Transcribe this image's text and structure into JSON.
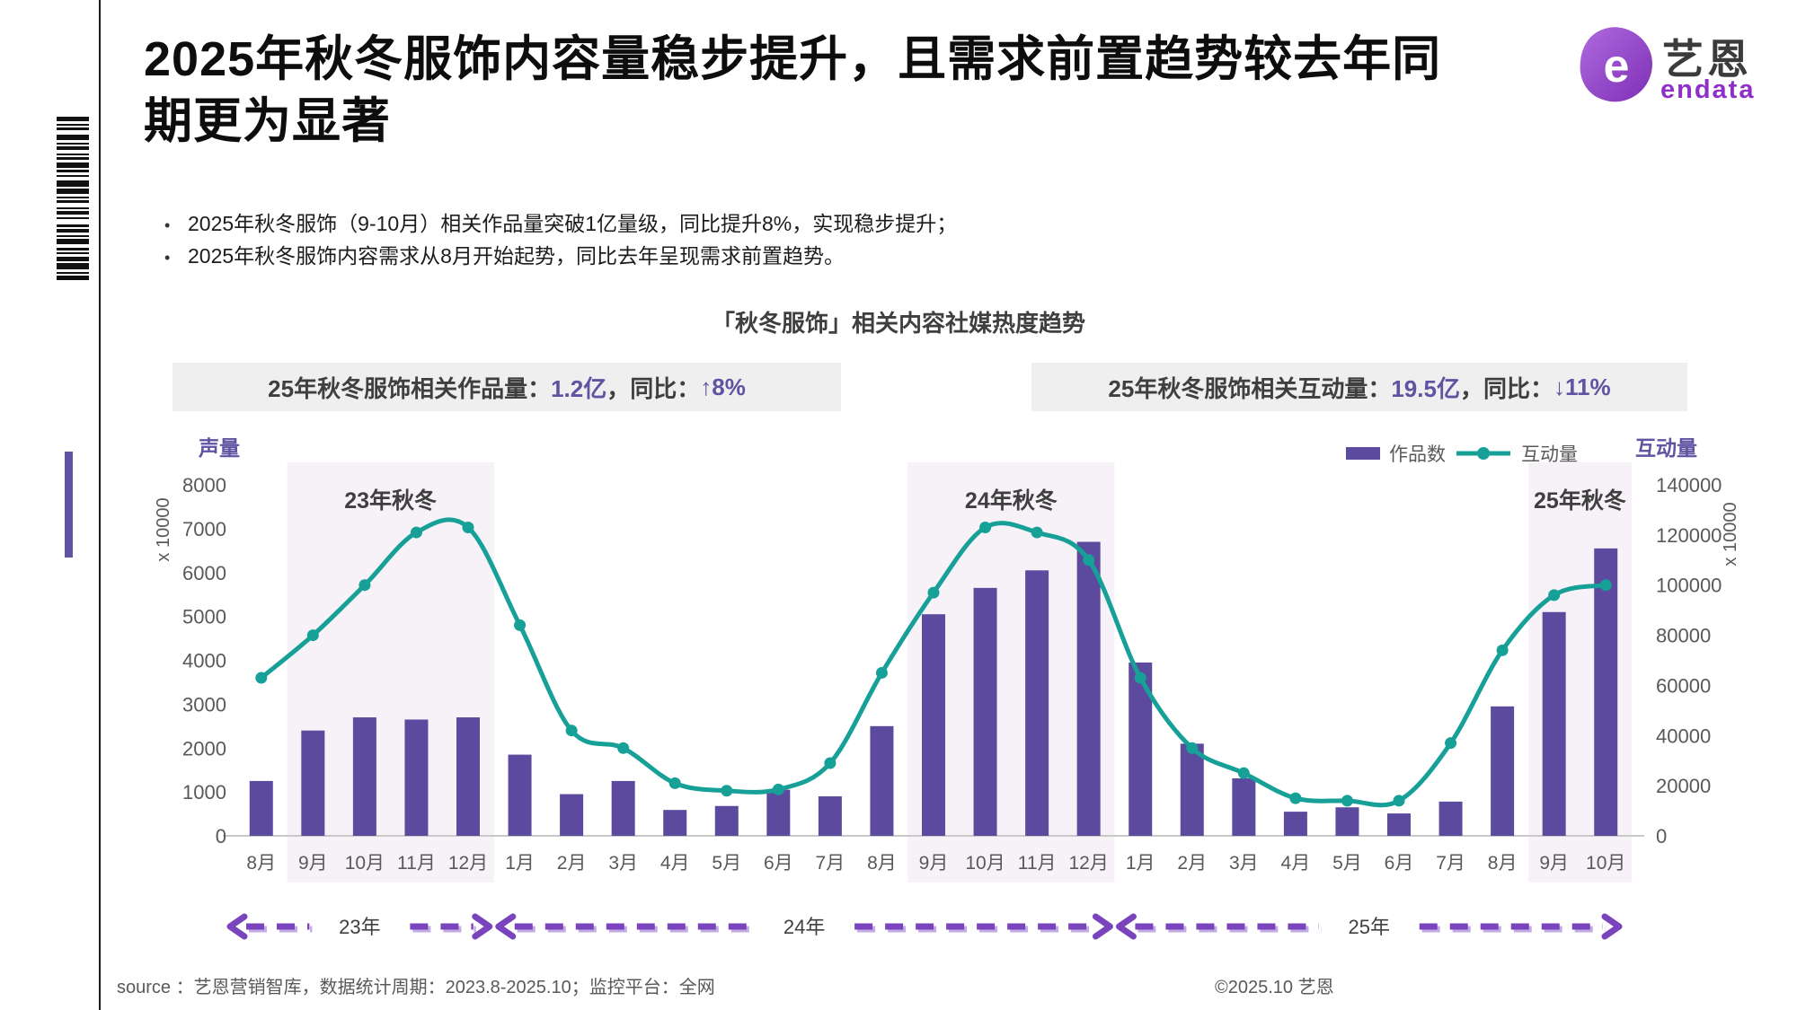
{
  "page": {
    "title_lines": [
      "2025年秋冬服饰内容量稳步提升，且需求前置趋势较去年同",
      "期更为显著"
    ],
    "bullets": [
      "2025年秋冬服饰（9-10月）相关作品量突破1亿量级，同比提升8%，实现稳步提升；",
      "2025年秋冬服饰内容需求从8月开始起势，同比去年呈现需求前置趋势。"
    ],
    "footer_source": "source ：艺恩营销智库，数据统计周期：2023.8-2025.10；监控平台：全网",
    "footer_copyright": "©2025.10  艺恩"
  },
  "logo": {
    "cn": "艺恩",
    "en": "endata",
    "mark": "e"
  },
  "stats": {
    "left": {
      "label": "25年秋冬服饰相关作品量：",
      "value": "1.2亿",
      "mid": "，同比：",
      "delta": "↑8%"
    },
    "right": {
      "label": "25年秋冬服饰相关互动量：",
      "value": "19.5亿",
      "mid": "，同比：",
      "delta": "↓11%"
    }
  },
  "legend": {
    "bar_label": "作品数",
    "line_label": "互动量"
  },
  "chart_data": {
    "type": "bar",
    "combo": "bar+line",
    "title": "「秋冬服饰」相关内容社媒热度趋势",
    "categories": [
      "8月",
      "9月",
      "10月",
      "11月",
      "12月",
      "1月",
      "2月",
      "3月",
      "4月",
      "5月",
      "6月",
      "7月",
      "8月",
      "9月",
      "10月",
      "11月",
      "12月",
      "1月",
      "2月",
      "3月",
      "4月",
      "5月",
      "6月",
      "7月",
      "8月",
      "9月",
      "10月"
    ],
    "left_axis": {
      "title": "声量",
      "unit": "x 10000",
      "min": 0,
      "max": 8000,
      "ticks": [
        0,
        1000,
        2000,
        3000,
        4000,
        5000,
        6000,
        7000,
        8000
      ]
    },
    "right_axis": {
      "title": "互动量",
      "unit": "x 10000",
      "min": 0,
      "max": 140000,
      "ticks": [
        0,
        20000,
        40000,
        60000,
        80000,
        100000,
        120000,
        140000
      ]
    },
    "series": [
      {
        "name": "作品数",
        "type": "bar",
        "axis": "left",
        "color": "#5c4a9e",
        "values": [
          1250,
          2400,
          2700,
          2650,
          2700,
          1850,
          950,
          1250,
          590,
          680,
          1050,
          900,
          2500,
          5050,
          5650,
          6050,
          6700,
          3950,
          2100,
          1310,
          550,
          650,
          510,
          780,
          2950,
          5100,
          6550
        ]
      },
      {
        "name": "互动量",
        "type": "line",
        "axis": "right",
        "color": "#16a098",
        "values": [
          63000,
          80000,
          100000,
          121000,
          123000,
          84000,
          42000,
          35000,
          21000,
          18000,
          18500,
          29000,
          65000,
          97000,
          123000,
          121000,
          110000,
          63000,
          35000,
          25000,
          15000,
          14000,
          14000,
          37000,
          74000,
          96000,
          100000
        ]
      },
      {
        "name": "互动量-点",
        "type": "scatter",
        "axis": "right",
        "color": "#16a098",
        "values": [
          63000,
          80000,
          100000,
          121000,
          123000,
          84000,
          42000,
          35000,
          21000,
          18000,
          18500,
          29000,
          65000,
          97000,
          123000,
          121000,
          110000,
          63000,
          35000,
          25000,
          15000,
          14000,
          14000,
          37000,
          74000,
          96000,
          100000
        ]
      }
    ],
    "highlights": [
      {
        "label": "23年秋冬",
        "from": 1,
        "to": 4
      },
      {
        "label": "24年秋冬",
        "from": 13,
        "to": 16
      },
      {
        "label": "25年秋冬",
        "from": 25,
        "to": 26
      }
    ],
    "year_spans": [
      {
        "label": "23年",
        "from": 0,
        "to": 4
      },
      {
        "label": "24年",
        "from": 5,
        "to": 16
      },
      {
        "label": "25年",
        "from": 17,
        "to": 26
      }
    ],
    "grid": "off",
    "legend_position": "top-right"
  },
  "colors": {
    "bar": "#5c4a9e",
    "line": "#16a098",
    "highlight": "#f7f2f8",
    "pill_bg": "#efefef",
    "purple_text": "#6152a2",
    "arrow": "#7a44bd",
    "arrow_light": "#c3abe3",
    "axis_text": "#595959",
    "baseline": "#c9c9c9",
    "region_label": "#3f3f3f"
  }
}
